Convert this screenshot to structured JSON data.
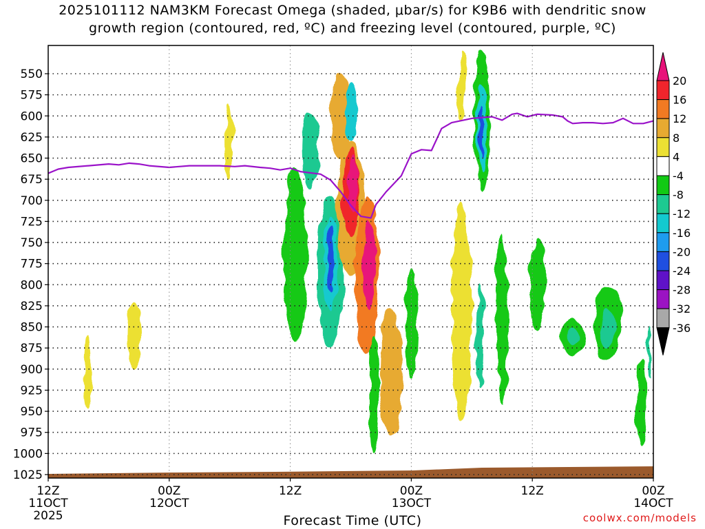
{
  "chart_data": {
    "type": "heatmap",
    "title_line1": "2025101112 NAM3KM Forecast Omega (shaded, μbar/s) for K9B6 with dendritic snow",
    "title_line2": "growth region (contoured, red, ºC) and freezing level (contoured, purple, ºC)",
    "xlabel": "Forecast Time (UTC)",
    "footer": "coolwx.com/models",
    "x_range_hours": [
      0,
      60
    ],
    "y_range_mb": [
      1030,
      515
    ],
    "y_ticks": [
      550,
      575,
      600,
      625,
      650,
      675,
      700,
      725,
      750,
      775,
      800,
      825,
      850,
      875,
      900,
      925,
      950,
      975,
      1000,
      1025
    ],
    "x_ticks": [
      {
        "hour": 0,
        "line1": "12Z",
        "line2": "11OCT",
        "line3": "2025"
      },
      {
        "hour": 12,
        "line1": "00Z",
        "line2": "12OCT",
        "line3": ""
      },
      {
        "hour": 24,
        "line1": "12Z",
        "line2": "",
        "line3": ""
      },
      {
        "hour": 36,
        "line1": "00Z",
        "line2": "13OCT",
        "line3": ""
      },
      {
        "hour": 48,
        "line1": "12Z",
        "line2": "",
        "line3": ""
      },
      {
        "hour": 60,
        "line1": "00Z",
        "line2": "14OCT",
        "line3": ""
      }
    ],
    "colorbar": {
      "labels": [
        "20",
        "16",
        "12",
        "8",
        "4",
        "-4",
        "-8",
        "-12",
        "-16",
        "-20",
        "-24",
        "-28",
        "-32",
        "-36"
      ],
      "colors": [
        "#e8137a",
        "#f0252c",
        "#f27a22",
        "#e7aa31",
        "#ece033",
        "#ffffff",
        "#12c914",
        "#1dc991",
        "#13c9cf",
        "#1e9cef",
        "#1f4fe0",
        "#5f12c8",
        "#9b13c3",
        "#a8a8a8",
        "#000000"
      ]
    },
    "freezing_level": {
      "hours": [
        0,
        1,
        2,
        4,
        6,
        7,
        8,
        9,
        10,
        12,
        14,
        17,
        18.5,
        19.5,
        21,
        22,
        23,
        24,
        25,
        27,
        28,
        29,
        30,
        31,
        32,
        32.5,
        33.5,
        35,
        36,
        37,
        38,
        39,
        40,
        42,
        44,
        45,
        46,
        46.5,
        47.5,
        48.5,
        50,
        51,
        51.5,
        52,
        53,
        54,
        55,
        56,
        57,
        58,
        59,
        60
      ],
      "pressure_mb": [
        668,
        663,
        661,
        659,
        657,
        658,
        656,
        657,
        659,
        661,
        659,
        659,
        660,
        659,
        661,
        662,
        664,
        662,
        666,
        669,
        676,
        690,
        706,
        719,
        721,
        705,
        690,
        671,
        645,
        640,
        641,
        615,
        608,
        603,
        601,
        605,
        598,
        597,
        601,
        598,
        599,
        601,
        606,
        609,
        608,
        608,
        609,
        608,
        603,
        609,
        609,
        606
      ]
    },
    "omega_cells": [
      {
        "hour": 3.9,
        "p": 905,
        "dh": 0.75,
        "dp": 85,
        "value": 6
      },
      {
        "hour": 8.5,
        "p": 860,
        "dh": 1.5,
        "dp": 80,
        "value": 5
      },
      {
        "hour": 18.0,
        "p": 630,
        "dh": 0.7,
        "dp": 90,
        "value": 6
      },
      {
        "hour": 24.5,
        "p": 765,
        "dh": 2.3,
        "dp": 210,
        "value": -6
      },
      {
        "hour": 26.0,
        "p": 640,
        "dh": 1.6,
        "dp": 90,
        "value": -8
      },
      {
        "hour": 28.0,
        "p": 785,
        "dh": 2.7,
        "dp": 180,
        "value": -10
      },
      {
        "hour": 28.0,
        "p": 775,
        "dh": 1.4,
        "dp": 110,
        "value": -14
      },
      {
        "hour": 28.0,
        "p": 770,
        "dh": 0.6,
        "dp": 80,
        "value": -22
      },
      {
        "hour": 29.0,
        "p": 600,
        "dh": 2.0,
        "dp": 100,
        "value": 8
      },
      {
        "hour": 30.0,
        "p": 710,
        "dh": 2.7,
        "dp": 160,
        "value": 10
      },
      {
        "hour": 30.0,
        "p": 690,
        "dh": 1.5,
        "dp": 110,
        "value": 16
      },
      {
        "hour": 30.2,
        "p": 680,
        "dh": 0.9,
        "dp": 70,
        "value": 22
      },
      {
        "hour": 30.0,
        "p": 595,
        "dh": 1.4,
        "dp": 70,
        "value": -12
      },
      {
        "hour": 31.6,
        "p": 790,
        "dh": 2.4,
        "dp": 190,
        "value": 12
      },
      {
        "hour": 31.8,
        "p": 775,
        "dh": 1.3,
        "dp": 110,
        "value": 20
      },
      {
        "hour": 32.3,
        "p": 930,
        "dh": 1.0,
        "dp": 140,
        "value": -6
      },
      {
        "hour": 34.0,
        "p": 905,
        "dh": 2.2,
        "dp": 150,
        "value": 8
      },
      {
        "hour": 36.0,
        "p": 845,
        "dh": 1.3,
        "dp": 130,
        "value": -6
      },
      {
        "hour": 41.0,
        "p": 830,
        "dh": 2.0,
        "dp": 260,
        "value": 6
      },
      {
        "hour": 42.8,
        "p": 860,
        "dh": 0.8,
        "dp": 120,
        "value": -8
      },
      {
        "hour": 41.0,
        "p": 565,
        "dh": 0.9,
        "dp": 80,
        "value": 6
      },
      {
        "hour": 43.0,
        "p": 605,
        "dh": 1.6,
        "dp": 170,
        "value": -6
      },
      {
        "hour": 43.0,
        "p": 615,
        "dh": 1.0,
        "dp": 110,
        "value": -12
      },
      {
        "hour": 43.0,
        "p": 620,
        "dh": 0.45,
        "dp": 60,
        "value": -22
      },
      {
        "hour": 45.0,
        "p": 840,
        "dh": 1.2,
        "dp": 200,
        "value": -6
      },
      {
        "hour": 48.5,
        "p": 800,
        "dh": 1.6,
        "dp": 110,
        "value": -6
      },
      {
        "hour": 52.0,
        "p": 862,
        "dh": 2.3,
        "dp": 45,
        "value": -6
      },
      {
        "hour": 52.0,
        "p": 862,
        "dh": 0.9,
        "dp": 25,
        "value": -10
      },
      {
        "hour": 55.5,
        "p": 845,
        "dh": 2.8,
        "dp": 85,
        "value": -6
      },
      {
        "hour": 55.5,
        "p": 852,
        "dh": 1.6,
        "dp": 45,
        "value": -10
      },
      {
        "hour": 58.8,
        "p": 940,
        "dh": 1.0,
        "dp": 100,
        "value": -6
      },
      {
        "hour": 59.6,
        "p": 880,
        "dh": 0.35,
        "dp": 60,
        "value": -8
      }
    ]
  }
}
